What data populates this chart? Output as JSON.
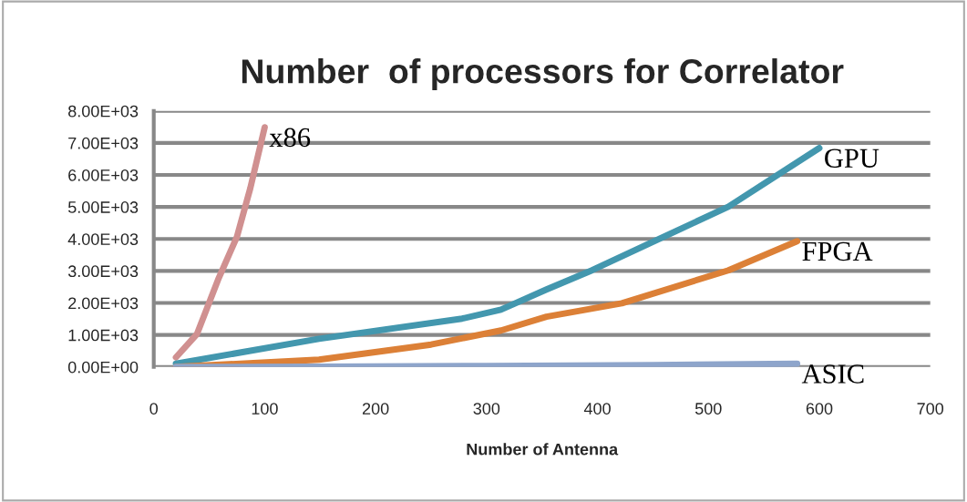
{
  "chart_data": {
    "type": "line",
    "title": "Number  of processors for Correlator",
    "xlabel": "Number of Antenna",
    "series": [
      {
        "name": "x86",
        "color": "#d09090",
        "x": [
          20,
          39,
          58,
          75,
          87,
          100
        ],
        "values": [
          300,
          1030,
          2730,
          4070,
          5580,
          7490
        ]
      },
      {
        "name": "GPU",
        "color": "#4397ae",
        "x": [
          20,
          149,
          278,
          313,
          354,
          395,
          518,
          600
        ],
        "values": [
          100,
          880,
          1510,
          1790,
          2420,
          3020,
          5010,
          6840
        ]
      },
      {
        "name": "FPGA",
        "color": "#dc8037",
        "x": [
          20,
          149,
          250,
          313,
          354,
          422,
          518,
          580
        ],
        "values": [
          0,
          230,
          700,
          1140,
          1570,
          1990,
          3020,
          3930
        ]
      },
      {
        "name": "ASIC",
        "color": "#8ea5cb",
        "x": [
          20,
          150,
          300,
          450,
          580
        ],
        "values": [
          0,
          10,
          30,
          60,
          100
        ]
      }
    ],
    "xlim": [
      0,
      700
    ],
    "xticks": [
      0,
      100,
      200,
      300,
      400,
      500,
      600,
      700
    ],
    "ylim": [
      0,
      8000
    ],
    "yticks": [
      {
        "value": 0,
        "label": "0.00E+00"
      },
      {
        "value": 1000,
        "label": "1.00E+03"
      },
      {
        "value": 2000,
        "label": "2.00E+03"
      },
      {
        "value": 3000,
        "label": "3.00E+03"
      },
      {
        "value": 4000,
        "label": "4.00E+03"
      },
      {
        "value": 5000,
        "label": "5.00E+03"
      },
      {
        "value": 6000,
        "label": "6.00E+03"
      },
      {
        "value": 7000,
        "label": "7.00E+03"
      },
      {
        "value": 8000,
        "label": "8.00E+03"
      }
    ],
    "grid": "y",
    "legend": false,
    "marker": "none",
    "line_style": "solid"
  }
}
